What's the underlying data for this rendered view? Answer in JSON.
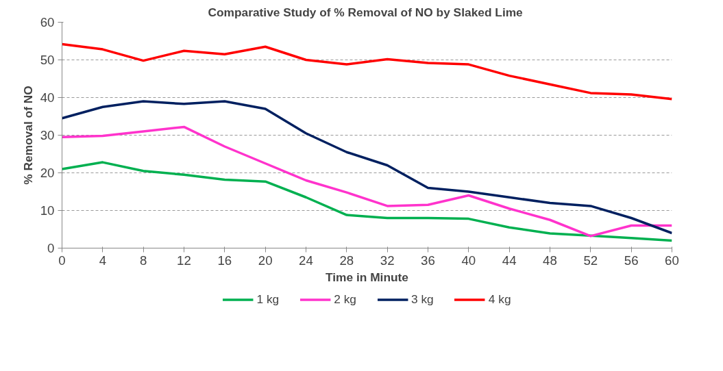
{
  "chart_data": {
    "type": "line",
    "title": "Comparative  Study of % Removal of NO by Slaked Lime",
    "xlabel": "Time in Minute",
    "ylabel": "% Removal of NO",
    "x": [
      0,
      4,
      8,
      12,
      16,
      20,
      24,
      28,
      32,
      36,
      40,
      44,
      48,
      52,
      56,
      60
    ],
    "series": [
      {
        "name": "1 kg",
        "color": "#00b050",
        "values": [
          21,
          22.8,
          20.5,
          19.5,
          18.2,
          17.7,
          13.5,
          8.8,
          8,
          8,
          7.8,
          5.5,
          3.9,
          3.3,
          2.7,
          2
        ]
      },
      {
        "name": "2 kg",
        "color": "#ff33cc",
        "values": [
          29.5,
          29.8,
          31,
          32.2,
          27,
          22.5,
          18,
          14.8,
          11.2,
          11.5,
          14,
          10.5,
          7.5,
          3.2,
          6,
          6
        ]
      },
      {
        "name": "3 kg",
        "color": "#002060",
        "values": [
          34.5,
          37.5,
          39,
          38.3,
          39,
          37,
          30.5,
          25.5,
          22,
          16,
          15,
          13.5,
          12,
          11.2,
          8,
          4
        ]
      },
      {
        "name": "4 kg",
        "color": "#ff0000",
        "values": [
          54.2,
          52.8,
          49.8,
          52.4,
          51.5,
          53.5,
          50,
          48.8,
          50.2,
          49.2,
          48.8,
          45.8,
          43.5,
          41.2,
          40.8,
          39.6
        ]
      }
    ],
    "xlim": [
      0,
      60
    ],
    "ylim": [
      0,
      60
    ],
    "xticks": [
      0,
      4,
      8,
      12,
      16,
      20,
      24,
      28,
      32,
      36,
      40,
      44,
      48,
      52,
      56,
      60
    ],
    "yticks": [
      0,
      10,
      20,
      30,
      40,
      50,
      60
    ],
    "grid": "y",
    "legend": "bottom",
    "marker": "none",
    "line_style": "solid"
  }
}
